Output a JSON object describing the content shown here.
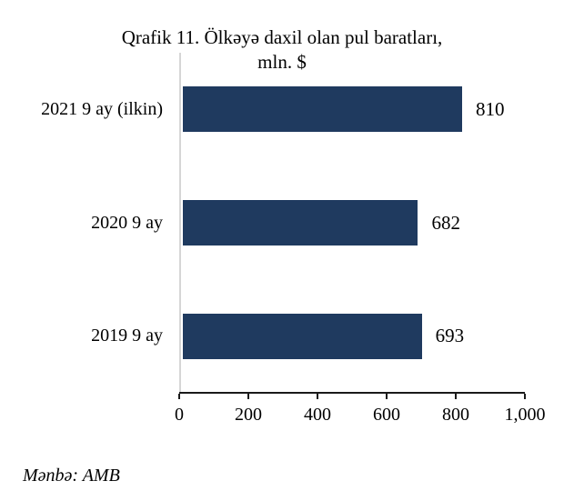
{
  "title": {
    "line1": "Qrafik 11. Ölkəyə daxil olan pul baratları,",
    "line2": "mln. $"
  },
  "source": "Mənbə: AMB",
  "colors": {
    "bar": "#1F3A5F",
    "axis": "#1a1a1a",
    "baseline": "#D6D6D6",
    "text": "#000000"
  },
  "chart_data": {
    "type": "bar",
    "orientation": "horizontal",
    "title": "Qrafik 11. Ölkəyə daxil olan pul baratları, mln. $",
    "categories": [
      "2021 9 ay (ilkin)",
      "2020 9 ay",
      "2019 9 ay"
    ],
    "values": [
      810,
      682,
      693
    ],
    "value_labels": [
      "810",
      "682",
      "693"
    ],
    "xlim": [
      0,
      1000
    ],
    "x_ticks": [
      0,
      200,
      400,
      600,
      800,
      1000
    ],
    "x_tick_labels": [
      "0",
      "200",
      "400",
      "600",
      "800",
      "1,000"
    ],
    "xlabel": "",
    "ylabel": "",
    "grid": false,
    "legend": false,
    "source": "Mənbə: AMB"
  }
}
